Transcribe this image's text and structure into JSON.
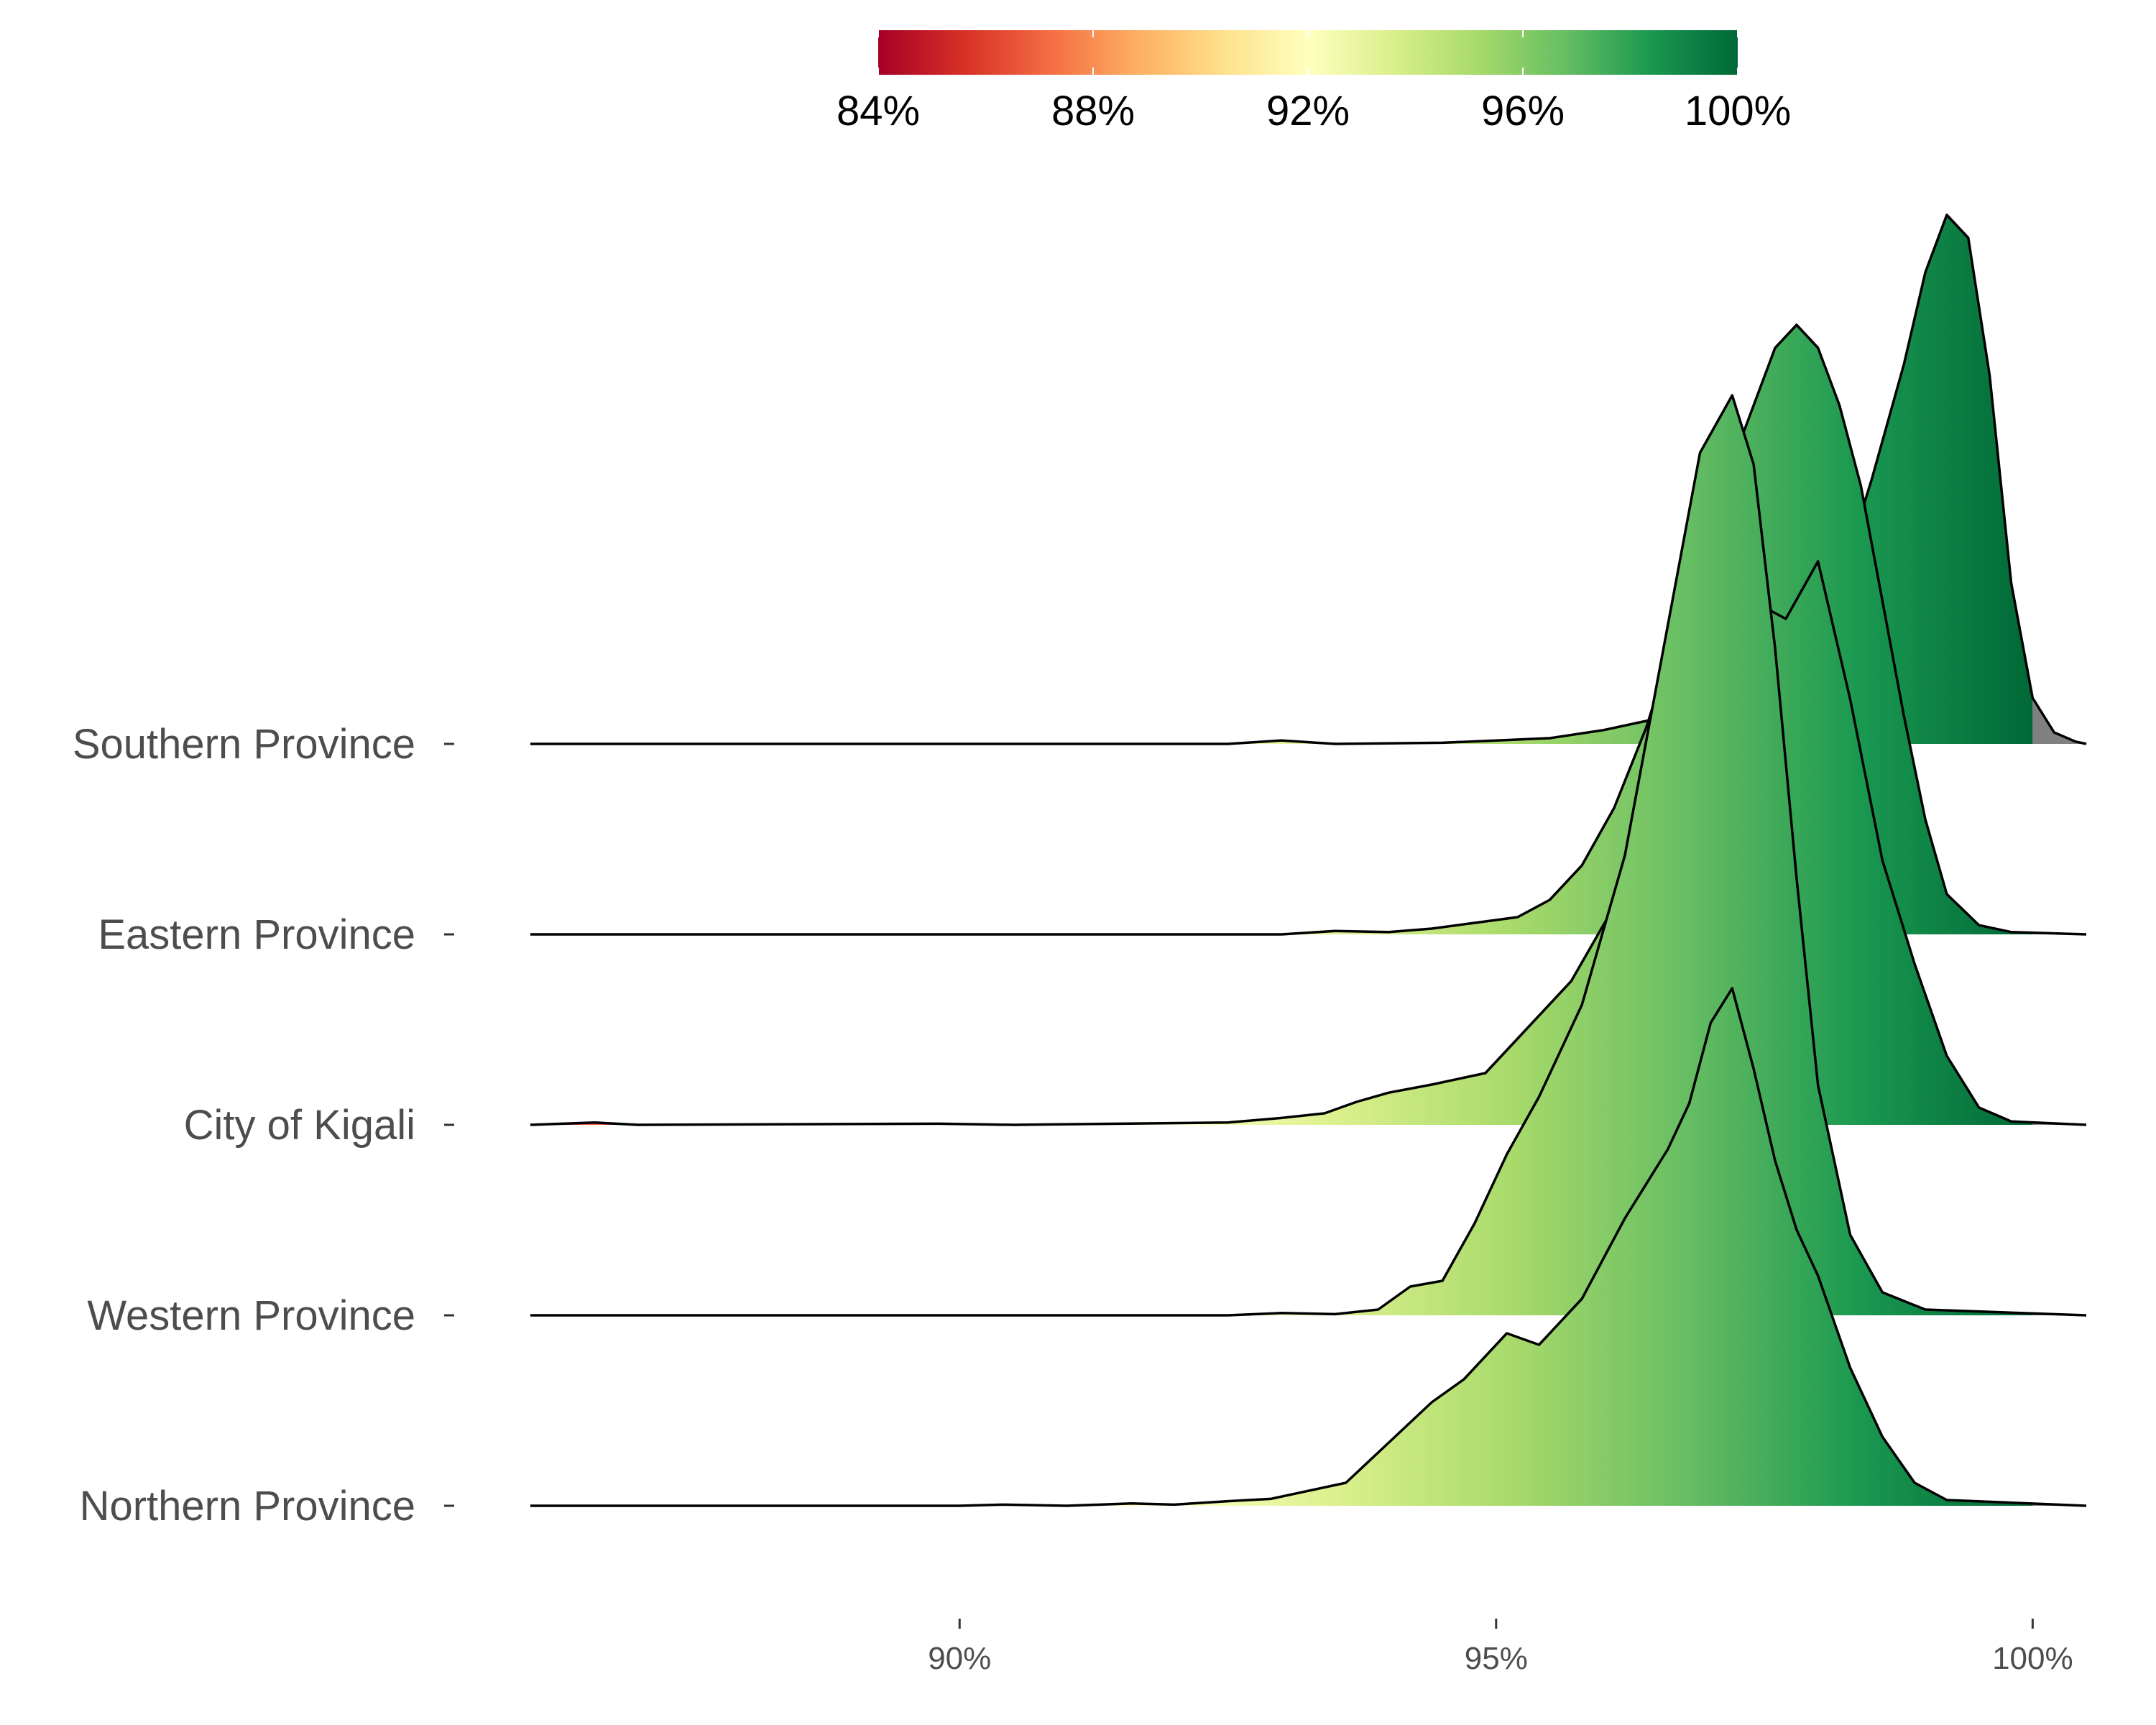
{
  "chart_data": {
    "type": "ridgeline",
    "title": "",
    "xlabel": "",
    "ylabel": "",
    "xlim": [
      0.86,
      1.005
    ],
    "x_ticks": [
      {
        "value": 0.9,
        "label": "90%"
      },
      {
        "value": 0.95,
        "label": "95%"
      },
      {
        "value": 1.0,
        "label": "100%"
      }
    ],
    "fill_scale": {
      "palette": "RdYlGn",
      "range": [
        0.84,
        1.0
      ],
      "colors": [
        "#a50026",
        "#d73027",
        "#f46d43",
        "#fdae61",
        "#fee08b",
        "#ffffbf",
        "#d9ef8b",
        "#a6d96a",
        "#66bd63",
        "#1a9850",
        "#006837"
      ],
      "ticks": [
        {
          "value": 0.84,
          "label": "84%"
        },
        {
          "value": 0.88,
          "label": "88%"
        },
        {
          "value": 0.92,
          "label": "92%"
        },
        {
          "value": 0.96,
          "label": "96%"
        },
        {
          "value": 1.0,
          "label": "100%"
        }
      ],
      "legend_position": "top"
    },
    "grid": false,
    "out_of_range_fill": "#808080",
    "series": [
      {
        "name": "Northern Province",
        "density": [
          [
            0.86,
            0
          ],
          [
            0.9,
            0
          ],
          [
            0.904,
            0.01
          ],
          [
            0.91,
            0
          ],
          [
            0.916,
            0.02
          ],
          [
            0.92,
            0.01
          ],
          [
            0.925,
            0.04
          ],
          [
            0.929,
            0.06
          ],
          [
            0.932,
            0.12
          ],
          [
            0.936,
            0.2
          ],
          [
            0.94,
            0.55
          ],
          [
            0.944,
            0.9
          ],
          [
            0.947,
            1.1
          ],
          [
            0.951,
            1.5
          ],
          [
            0.954,
            1.4
          ],
          [
            0.958,
            1.8
          ],
          [
            0.962,
            2.5
          ],
          [
            0.966,
            3.1
          ],
          [
            0.968,
            3.5
          ],
          [
            0.97,
            4.2
          ],
          [
            0.972,
            4.5
          ],
          [
            0.974,
            3.8
          ],
          [
            0.976,
            3.0
          ],
          [
            0.978,
            2.4
          ],
          [
            0.98,
            2.0
          ],
          [
            0.983,
            1.2
          ],
          [
            0.986,
            0.6
          ],
          [
            0.989,
            0.2
          ],
          [
            0.992,
            0.05
          ],
          [
            1.005,
            0
          ]
        ]
      },
      {
        "name": "Western Province",
        "density": [
          [
            0.86,
            0
          ],
          [
            0.925,
            0
          ],
          [
            0.93,
            0.02
          ],
          [
            0.935,
            0.01
          ],
          [
            0.939,
            0.05
          ],
          [
            0.942,
            0.25
          ],
          [
            0.945,
            0.3
          ],
          [
            0.948,
            0.8
          ],
          [
            0.951,
            1.4
          ],
          [
            0.954,
            1.9
          ],
          [
            0.958,
            2.7
          ],
          [
            0.962,
            4.0
          ],
          [
            0.964,
            5.0
          ],
          [
            0.966,
            6.0
          ],
          [
            0.969,
            7.5
          ],
          [
            0.972,
            8.0
          ],
          [
            0.974,
            7.4
          ],
          [
            0.976,
            5.8
          ],
          [
            0.978,
            3.8
          ],
          [
            0.98,
            2.0
          ],
          [
            0.983,
            0.7
          ],
          [
            0.986,
            0.2
          ],
          [
            0.99,
            0.05
          ],
          [
            1.005,
            0
          ]
        ]
      },
      {
        "name": "City of Kigali",
        "density": [
          [
            0.86,
            0
          ],
          [
            0.866,
            0.02
          ],
          [
            0.87,
            0
          ],
          [
            0.898,
            0.01
          ],
          [
            0.905,
            0
          ],
          [
            0.915,
            0.01
          ],
          [
            0.925,
            0.02
          ],
          [
            0.93,
            0.06
          ],
          [
            0.934,
            0.1
          ],
          [
            0.937,
            0.2
          ],
          [
            0.94,
            0.28
          ],
          [
            0.944,
            0.35
          ],
          [
            0.949,
            0.45
          ],
          [
            0.953,
            0.85
          ],
          [
            0.957,
            1.25
          ],
          [
            0.961,
            1.9
          ],
          [
            0.964,
            2.3
          ],
          [
            0.966,
            2.5
          ],
          [
            0.968,
            3.2
          ],
          [
            0.97,
            3.8
          ],
          [
            0.972,
            4.2
          ],
          [
            0.975,
            4.5
          ],
          [
            0.977,
            4.4
          ],
          [
            0.98,
            4.9
          ],
          [
            0.983,
            3.7
          ],
          [
            0.986,
            2.3
          ],
          [
            0.989,
            1.4
          ],
          [
            0.992,
            0.6
          ],
          [
            0.995,
            0.15
          ],
          [
            0.998,
            0.03
          ],
          [
            1.005,
            0
          ]
        ]
      },
      {
        "name": "Eastern Province",
        "density": [
          [
            0.86,
            0
          ],
          [
            0.93,
            0
          ],
          [
            0.935,
            0.03
          ],
          [
            0.94,
            0.02
          ],
          [
            0.944,
            0.05
          ],
          [
            0.948,
            0.1
          ],
          [
            0.952,
            0.15
          ],
          [
            0.955,
            0.3
          ],
          [
            0.958,
            0.6
          ],
          [
            0.961,
            1.1
          ],
          [
            0.964,
            1.8
          ],
          [
            0.966,
            2.4
          ],
          [
            0.968,
            3.1
          ],
          [
            0.97,
            3.6
          ],
          [
            0.972,
            4.1
          ],
          [
            0.974,
            4.6
          ],
          [
            0.976,
            5.1
          ],
          [
            0.978,
            5.3
          ],
          [
            0.98,
            5.1
          ],
          [
            0.982,
            4.6
          ],
          [
            0.984,
            3.9
          ],
          [
            0.986,
            2.9
          ],
          [
            0.988,
            1.9
          ],
          [
            0.99,
            1.0
          ],
          [
            0.992,
            0.35
          ],
          [
            0.995,
            0.08
          ],
          [
            0.998,
            0.02
          ],
          [
            1.005,
            0
          ]
        ]
      },
      {
        "name": "Southern Province",
        "density": [
          [
            0.86,
            0
          ],
          [
            0.925,
            0
          ],
          [
            0.93,
            0.03
          ],
          [
            0.935,
            0
          ],
          [
            0.945,
            0.01
          ],
          [
            0.95,
            0.03
          ],
          [
            0.955,
            0.05
          ],
          [
            0.96,
            0.12
          ],
          [
            0.965,
            0.22
          ],
          [
            0.97,
            0.45
          ],
          [
            0.974,
            0.8
          ],
          [
            0.978,
            1.1
          ],
          [
            0.982,
            1.4
          ],
          [
            0.985,
            2.3
          ],
          [
            0.988,
            3.3
          ],
          [
            0.99,
            4.1
          ],
          [
            0.992,
            4.6
          ],
          [
            0.994,
            4.4
          ],
          [
            0.996,
            3.2
          ],
          [
            0.998,
            1.4
          ],
          [
            1.0,
            0.4
          ],
          [
            1.002,
            0.1
          ],
          [
            1.004,
            0.02
          ],
          [
            1.005,
            0
          ]
        ]
      }
    ]
  }
}
